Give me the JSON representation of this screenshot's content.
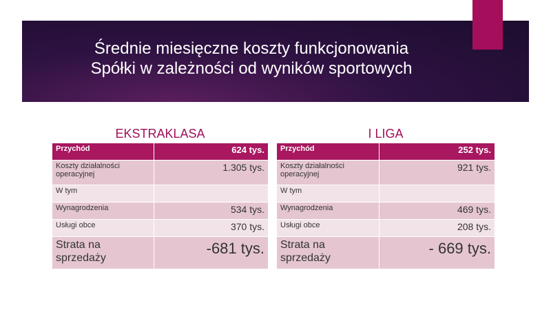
{
  "slide": {
    "title": [
      "Średnie miesięczne koszty funkcjonowania",
      "Spółki w zależności od wyników sportowych"
    ],
    "tables": [
      {
        "heading": "EKSTRAKLASA",
        "rows": [
          [
            "Przychód",
            "624 tys."
          ],
          [
            "Koszty działalności operacyjnej",
            "1.305 tys."
          ],
          [
            "W tym"
          ],
          [
            "Wynagrodzenia",
            "534 tys."
          ],
          [
            "Usługi obce",
            "370 tys."
          ],
          [
            "Strata na sprzedaży",
            "-681 tys."
          ]
        ]
      },
      {
        "heading": "I LIGA",
        "rows": [
          [
            "Przychód",
            "252 tys."
          ],
          [
            "Koszty działalności operacyjnej",
            "921 tys."
          ],
          [
            "W tym"
          ],
          [
            "Wynagrodzenia",
            "469 tys."
          ],
          [
            "Usługi obce",
            "208 tys."
          ],
          [
            "Strata na sprzedaży",
            "- 669 tys."
          ]
        ]
      }
    ]
  }
}
